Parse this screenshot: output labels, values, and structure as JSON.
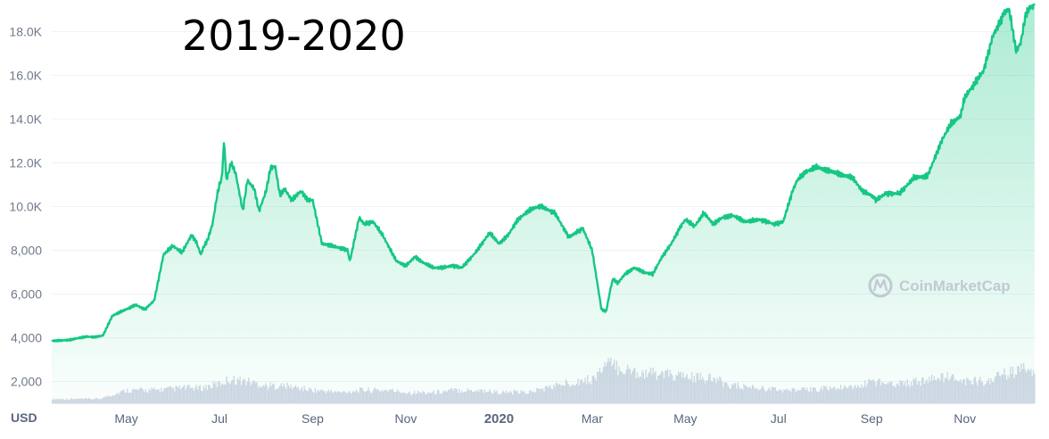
{
  "title": "2019-2020",
  "watermark": "CoinMarketCap",
  "chart_data": {
    "type": "area",
    "unit": "USD",
    "yticks": [
      "2,000",
      "4,000",
      "6,000",
      "8,000",
      "10.0K",
      "12.0K",
      "14.0K",
      "16.0K",
      "18.0K"
    ],
    "ytick_values": [
      2000,
      4000,
      6000,
      8000,
      10000,
      12000,
      14000,
      16000,
      18000
    ],
    "xticks": [
      "May",
      "Jul",
      "Sep",
      "Nov",
      "2020",
      "Mar",
      "May",
      "Jul",
      "Sep",
      "Nov"
    ],
    "xtick_months": [
      4,
      6,
      8,
      10,
      12,
      14,
      16,
      18,
      20,
      22
    ],
    "xlim_months": [
      2.4,
      23.5
    ],
    "ylim": [
      1000,
      19200
    ],
    "colors": {
      "line": "#16c784",
      "grid": "#eff2f5",
      "volume": "#cfd6e4"
    },
    "price_series": {
      "months": [
        2.4,
        2.8,
        3.0,
        3.15,
        3.3,
        3.5,
        3.7,
        3.9,
        4.0,
        4.2,
        4.4,
        4.6,
        4.8,
        5.0,
        5.2,
        5.4,
        5.5,
        5.6,
        5.65,
        5.75,
        5.85,
        5.95,
        6.0,
        6.05,
        6.1,
        6.15,
        6.25,
        6.35,
        6.5,
        6.6,
        6.75,
        6.85,
        7.0,
        7.1,
        7.2,
        7.3,
        7.4,
        7.55,
        7.75,
        7.9,
        8.0,
        8.2,
        8.4,
        8.6,
        8.75,
        8.8,
        9.0,
        9.1,
        9.3,
        9.5,
        9.8,
        10.0,
        10.2,
        10.4,
        10.6,
        10.8,
        11.0,
        11.2,
        11.5,
        11.8,
        12.0,
        12.2,
        12.4,
        12.7,
        12.9,
        13.2,
        13.5,
        13.8,
        14.0,
        14.2,
        14.3,
        14.4,
        14.45,
        14.55,
        14.7,
        14.9,
        15.1,
        15.3,
        15.5,
        15.7,
        15.9,
        16.0,
        16.2,
        16.4,
        16.6,
        16.8,
        17.0,
        17.3,
        17.6,
        17.9,
        18.1,
        18.3,
        18.4,
        18.6,
        18.8,
        19.0,
        19.3,
        19.6,
        19.8,
        20.0,
        20.1,
        20.3,
        20.6,
        20.9,
        21.2,
        21.5,
        21.7,
        21.9,
        22.0,
        22.2,
        22.4,
        22.6,
        22.75,
        22.85,
        22.95,
        23.0,
        23.1,
        23.2,
        23.3,
        23.4,
        23.5
      ],
      "prices": [
        3850,
        3900,
        4000,
        4050,
        4030,
        4100,
        5000,
        5200,
        5300,
        5500,
        5300,
        5700,
        7800,
        8200,
        7900,
        8700,
        8400,
        7800,
        8100,
        8500,
        9200,
        10500,
        11000,
        11300,
        13000,
        11200,
        12000,
        11500,
        9800,
        11200,
        10800,
        9800,
        10700,
        11800,
        11800,
        10500,
        10800,
        10300,
        10700,
        10300,
        10300,
        8300,
        8200,
        8100,
        8000,
        7500,
        9500,
        9200,
        9300,
        8700,
        7500,
        7300,
        7700,
        7400,
        7200,
        7200,
        7300,
        7200,
        7900,
        8800,
        8300,
        8700,
        9400,
        9900,
        10000,
        9700,
        8600,
        9000,
        8000,
        5300,
        5200,
        6300,
        6700,
        6500,
        6900,
        7200,
        7000,
        6900,
        7700,
        8300,
        9100,
        9400,
        9100,
        9700,
        9200,
        9500,
        9600,
        9300,
        9400,
        9200,
        9300,
        10700,
        11200,
        11600,
        11800,
        11700,
        11500,
        11300,
        10700,
        10500,
        10300,
        10600,
        10600,
        11300,
        11400,
        13000,
        13800,
        14100,
        15000,
        15600,
        16200,
        17800,
        18400,
        18900,
        19000,
        18400,
        17100,
        17500,
        18700,
        19100,
        19200
      ]
    },
    "volume_series": {
      "months": [
        2.4,
        3.4,
        4.0,
        4.6,
        5.2,
        5.6,
        6.0,
        6.2,
        6.6,
        7.0,
        7.4,
        8.0,
        8.6,
        9.0,
        9.6,
        10.0,
        10.6,
        11.0,
        11.6,
        12.0,
        12.6,
        13.0,
        13.6,
        14.0,
        14.3,
        14.6,
        15.0,
        15.6,
        16.0,
        16.6,
        17.0,
        17.6,
        18.0,
        18.6,
        19.0,
        19.6,
        20.0,
        20.6,
        21.0,
        21.6,
        22.0,
        22.4,
        22.8,
        23.2,
        23.5
      ],
      "volumes": [
        1200,
        1200,
        1600,
        1600,
        1700,
        1700,
        1900,
        2100,
        2000,
        1800,
        1800,
        1600,
        1500,
        1600,
        1600,
        1500,
        1500,
        1600,
        1600,
        1500,
        1500,
        1700,
        2000,
        2100,
        2800,
        2600,
        2400,
        2300,
        2200,
        2100,
        1800,
        1700,
        1600,
        1600,
        1700,
        1700,
        2000,
        1900,
        2000,
        2200,
        2000,
        2000,
        2300,
        2500,
        2600
      ]
    }
  }
}
